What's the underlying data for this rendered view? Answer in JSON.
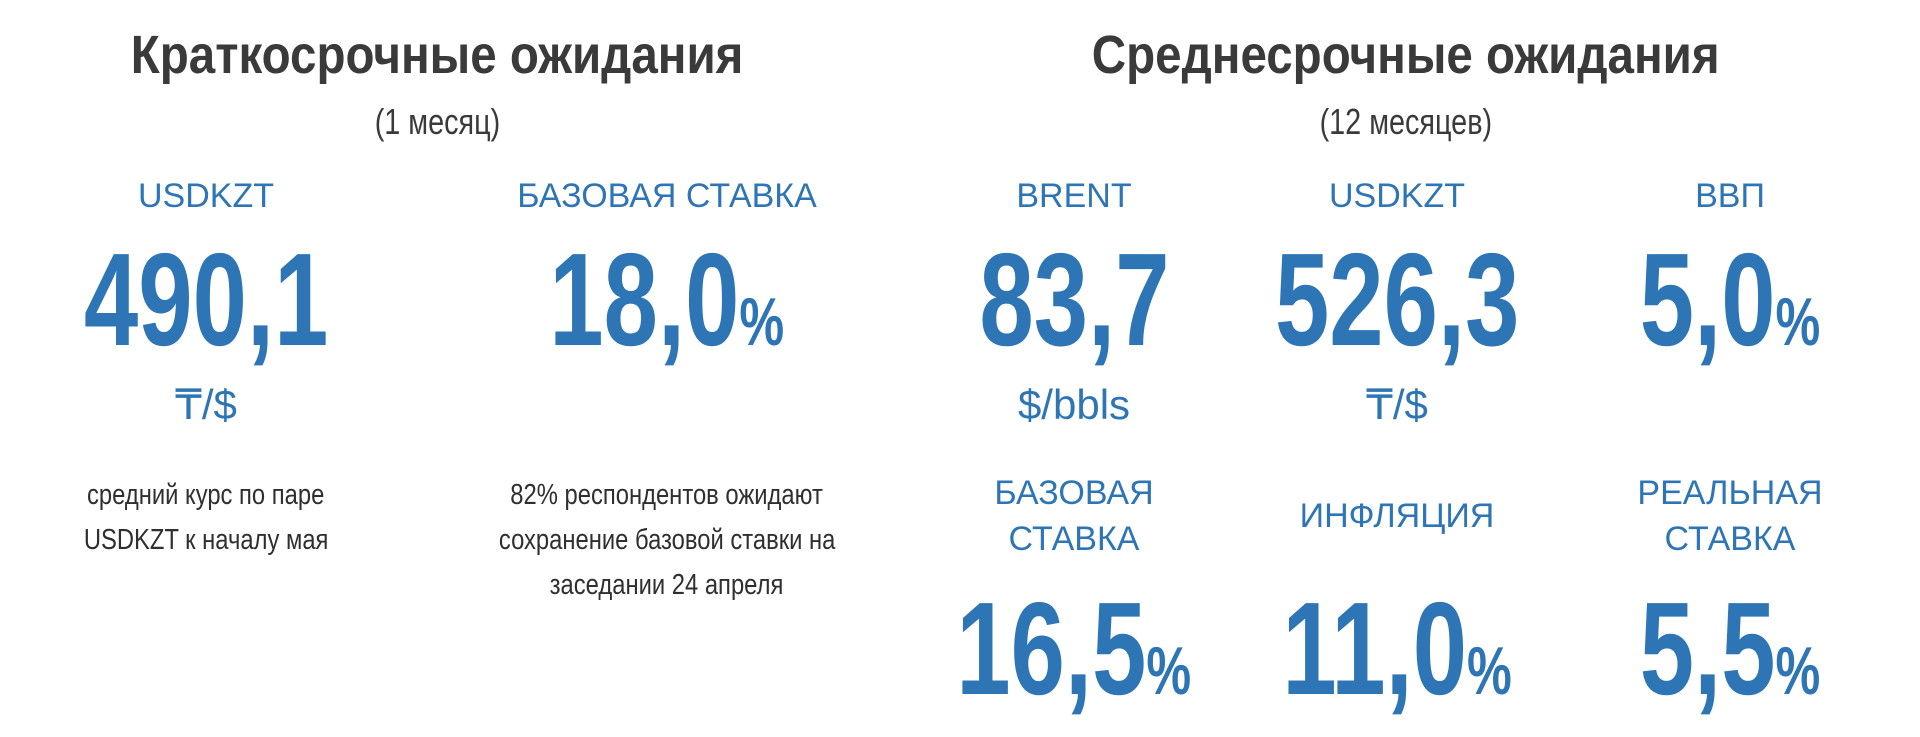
{
  "short_term": {
    "title": "Краткосрочные ожидания",
    "subtitle": "(1 месяц)",
    "items": [
      {
        "label": [
          "USDKZT"
        ],
        "value": "490,1",
        "unit": "₸/$",
        "note": [
          "средний курс по паре",
          "USDKZT к началу мая"
        ]
      },
      {
        "label": [
          "БАЗОВАЯ СТАВКА"
        ],
        "value": "18,0",
        "suffix": "%",
        "note": [
          "82% респондентов ожидают",
          "сохранение базовой ставки на",
          "заседании 24 апреля"
        ]
      }
    ]
  },
  "medium_term": {
    "title": "Среднесрочные ожидания",
    "subtitle": "(12 месяцев)",
    "items": [
      {
        "label": [
          "BRENT"
        ],
        "value": "83,7",
        "unit": "$/bbls"
      },
      {
        "label": [
          "USDKZT"
        ],
        "value": "526,3",
        "unit": "₸/$"
      },
      {
        "label": [
          "ВВП"
        ],
        "value": "5,0",
        "suffix": "%"
      },
      {
        "label": [
          "БАЗОВАЯ",
          "СТАВКА"
        ],
        "value": "16,5",
        "suffix": "%"
      },
      {
        "label": [
          "ИНФЛЯЦИЯ"
        ],
        "value": "11,0",
        "suffix": "%"
      },
      {
        "label": [
          "РЕАЛЬНАЯ",
          "СТАВКА"
        ],
        "value": "5,5",
        "suffix": "%"
      }
    ]
  }
}
